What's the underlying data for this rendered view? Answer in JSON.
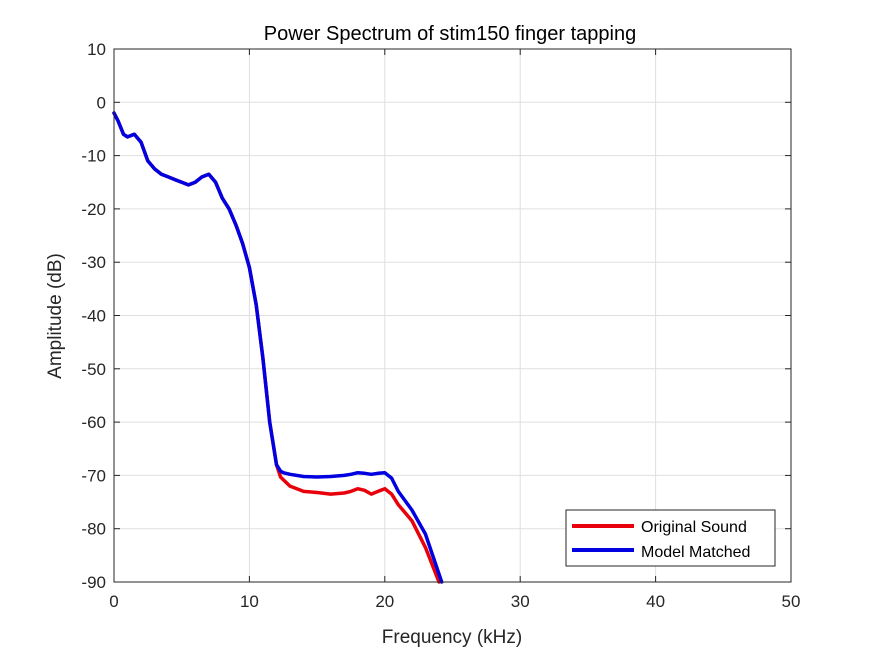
{
  "chart_data": {
    "type": "line",
    "title": "Power Spectrum of stim150 finger tapping",
    "xlabel": "Frequency (kHz)",
    "ylabel": "Amplitude (dB)",
    "xlim": [
      0,
      50
    ],
    "ylim": [
      -90,
      10
    ],
    "xticks": [
      0,
      10,
      20,
      30,
      40,
      50
    ],
    "yticks": [
      10,
      0,
      -10,
      -20,
      -30,
      -40,
      -50,
      -60,
      -70,
      -80,
      -90
    ],
    "grid": true,
    "legend_position": "bottom-right",
    "series": [
      {
        "name": "Original Sound",
        "color": "#e8000b",
        "x": [
          0,
          0.3,
          0.7,
          1.0,
          1.5,
          2.0,
          2.5,
          3.0,
          3.5,
          4.0,
          4.5,
          5.0,
          5.5,
          6.0,
          6.5,
          7.0,
          7.5,
          8.0,
          8.5,
          9.0,
          9.5,
          10.0,
          10.5,
          11.0,
          11.5,
          12.0,
          12.3,
          12.5,
          13.0,
          14.0,
          15.0,
          16.0,
          17.0,
          17.5,
          18.0,
          18.5,
          19.0,
          19.5,
          20.0,
          20.5,
          21.0,
          22.0,
          23.0,
          24.0
        ],
        "y": [
          -2,
          -3.5,
          -6,
          -6.5,
          -6,
          -7.5,
          -11,
          -12.5,
          -13.5,
          -14,
          -14.5,
          -15,
          -15.5,
          -15,
          -14,
          -13.5,
          -15,
          -18,
          -20,
          -23,
          -26.5,
          -31,
          -38,
          -48,
          -60,
          -68,
          -70.3,
          -70.8,
          -72,
          -73,
          -73.2,
          -73.5,
          -73.3,
          -73,
          -72.5,
          -72.8,
          -73.5,
          -73,
          -72.5,
          -73.5,
          -75.5,
          -78.5,
          -83.5,
          -90
        ]
      },
      {
        "name": "Model Matched",
        "color": "#0000e0",
        "x": [
          0,
          0.3,
          0.7,
          1.0,
          1.5,
          2.0,
          2.5,
          3.0,
          3.5,
          4.0,
          4.5,
          5.0,
          5.5,
          6.0,
          6.5,
          7.0,
          7.5,
          8.0,
          8.5,
          9.0,
          9.5,
          10.0,
          10.5,
          11.0,
          11.5,
          12.0,
          12.3,
          12.5,
          13.0,
          14.0,
          15.0,
          16.0,
          17.0,
          17.5,
          18.0,
          18.5,
          19.0,
          19.5,
          20.0,
          20.5,
          21.0,
          22.0,
          23.0,
          24.2
        ],
        "y": [
          -2,
          -3.5,
          -6,
          -6.5,
          -6,
          -7.5,
          -11,
          -12.5,
          -13.5,
          -14,
          -14.5,
          -15,
          -15.5,
          -15,
          -14,
          -13.5,
          -15,
          -18,
          -20,
          -23,
          -26.5,
          -31,
          -38,
          -48,
          -60,
          -68,
          -69.2,
          -69.5,
          -69.8,
          -70.2,
          -70.3,
          -70.2,
          -70,
          -69.8,
          -69.5,
          -69.6,
          -69.8,
          -69.6,
          -69.5,
          -70.5,
          -73,
          -76.5,
          -81,
          -90
        ]
      }
    ]
  }
}
